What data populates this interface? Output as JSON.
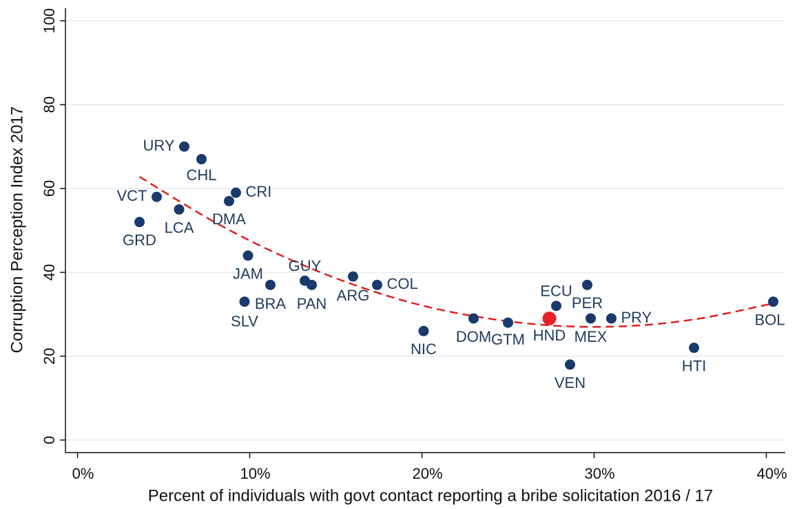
{
  "chart_data": {
    "type": "scatter",
    "xlabel": "Percent of individuals with govt contact reporting a bribe solicitation 2016 / 17",
    "ylabel": "Corruption Perception Index 2017",
    "labels": [
      "URY",
      "CHL",
      "CRI",
      "DMA",
      "VCT",
      "LCA",
      "GRD",
      "JAM",
      "BRA",
      "SLV",
      "GUY",
      "PAN",
      "ARG",
      "COL",
      "NIC",
      "DOM",
      "GTM",
      "HND",
      "ECU",
      "VEN",
      "PER",
      "MEX",
      "PRY",
      "HTI",
      "BOL"
    ],
    "x": [
      6.2,
      7.2,
      9.2,
      8.8,
      4.6,
      5.9,
      3.6,
      9.9,
      11.2,
      9.7,
      13.2,
      13.6,
      16.0,
      17.4,
      20.1,
      23.0,
      25.0,
      27.4,
      27.8,
      28.6,
      29.6,
      29.8,
      31.0,
      35.8,
      40.4
    ],
    "values": [
      70,
      67,
      59,
      57,
      58,
      55,
      52,
      44,
      37,
      33,
      38,
      37,
      39,
      37,
      26,
      29,
      28,
      29,
      32,
      18,
      37,
      29,
      29,
      22,
      33
    ],
    "colors": [
      "#1a3a6b",
      "#1a3a6b",
      "#1a3a6b",
      "#1a3a6b",
      "#1a3a6b",
      "#1a3a6b",
      "#1a3a6b",
      "#1a3a6b",
      "#1a3a6b",
      "#1a3a6b",
      "#1a3a6b",
      "#1a3a6b",
      "#1a3a6b",
      "#1a3a6b",
      "#1a3a6b",
      "#1a3a6b",
      "#1a3a6b",
      "#e8202a",
      "#1a3a6b",
      "#1a3a6b",
      "#1a3a6b",
      "#1a3a6b",
      "#1a3a6b",
      "#1a3a6b",
      "#1a3a6b"
    ],
    "fit": {
      "x": [
        3.6,
        8,
        12,
        16,
        20,
        24,
        28,
        32,
        36,
        40.4
      ],
      "values": [
        62.8,
        51.9,
        43.7,
        37.1,
        32.1,
        28.9,
        27.2,
        27.2,
        28.9,
        32.6
      ],
      "color": "#e02020"
    },
    "xlim": [
      -0.7,
      41.1
    ],
    "ylim": [
      -3,
      103
    ],
    "xticks": [
      {
        "value": 0,
        "label": "0%"
      },
      {
        "value": 10,
        "label": "10%"
      },
      {
        "value": 20,
        "label": "20%"
      },
      {
        "value": 30,
        "label": "30%"
      },
      {
        "value": 40,
        "label": "40%"
      }
    ],
    "yticks": [
      0,
      20,
      40,
      60,
      80,
      100
    ],
    "grid": true,
    "grid_color": "#e3ecf0"
  }
}
